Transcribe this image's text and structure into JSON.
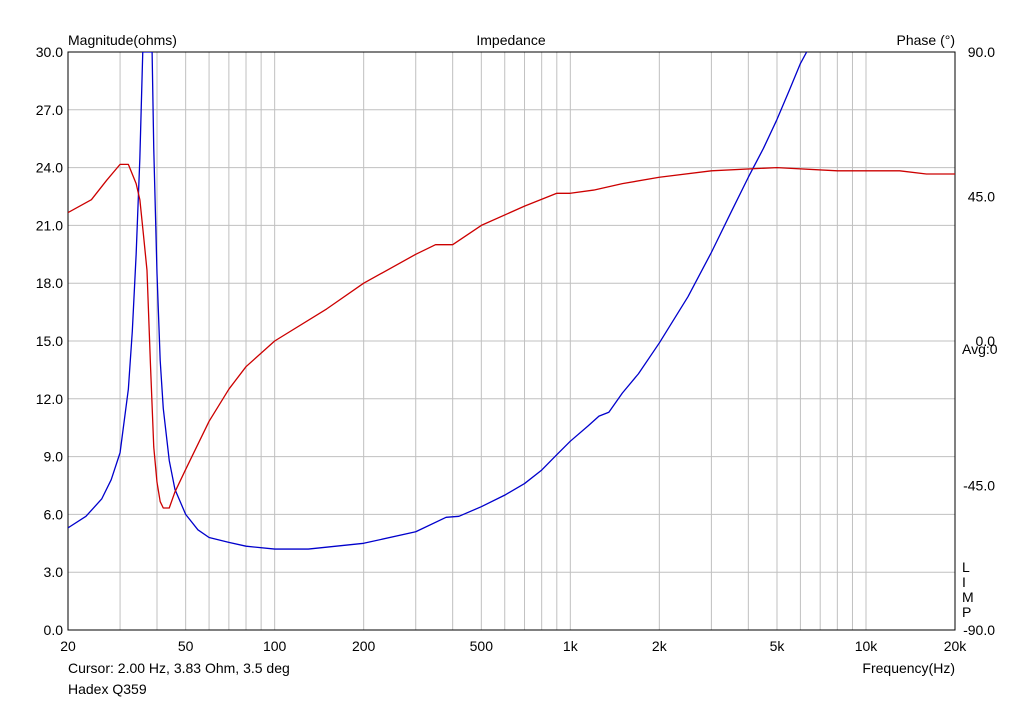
{
  "chart_data": {
    "type": "line",
    "title": "Impedance",
    "ylabel_left": "Magnitude(ohms)",
    "ylabel_right": "Phase (°)",
    "xlabel": "Frequency(Hz)",
    "x_scale": "log",
    "xlim": [
      20,
      20000
    ],
    "ylim_left": [
      0,
      30
    ],
    "ylim_right": [
      -90,
      90
    ],
    "grid": true,
    "x_ticks": [
      20,
      50,
      100,
      200,
      500,
      1000,
      2000,
      5000,
      10000,
      20000
    ],
    "x_tick_labels": [
      "20",
      "50",
      "100",
      "200",
      "500",
      "1k",
      "2k",
      "5k",
      "10k",
      "20k"
    ],
    "y_ticks_left": [
      "0.0",
      "3.0",
      "6.0",
      "9.0",
      "12.0",
      "15.0",
      "18.0",
      "21.0",
      "24.0",
      "27.0",
      "30.0"
    ],
    "y_ticks_right": [
      {
        "label": "90.0",
        "value": 90
      },
      {
        "label": "45.0",
        "value": 45
      },
      {
        "label": "0.0",
        "value": 0
      },
      {
        "label": "-45.0",
        "value": -45
      },
      {
        "label": "-90.0",
        "value": -90
      }
    ],
    "avg_label": "Avg:0",
    "side_label": [
      "L",
      "I",
      "M",
      "P"
    ],
    "cursor_text": "Cursor: 2.00 Hz, 3.83 Ohm, 3.5 deg",
    "footer_text": "Hadex Q359",
    "series": [
      {
        "color": "#0000cc",
        "axis": "left",
        "points": [
          [
            20,
            5.3
          ],
          [
            23,
            5.9
          ],
          [
            26,
            6.8
          ],
          [
            28,
            7.8
          ],
          [
            30,
            9.2
          ],
          [
            32,
            12.5
          ],
          [
            33,
            15.5
          ],
          [
            34,
            19.5
          ],
          [
            35,
            24.5
          ],
          [
            35.8,
            30
          ],
          [
            38.5,
            30
          ],
          [
            39,
            25
          ],
          [
            40,
            18.5
          ],
          [
            41,
            14
          ],
          [
            42,
            11.5
          ],
          [
            44,
            8.8
          ],
          [
            46,
            7.3
          ],
          [
            50,
            6.0
          ],
          [
            55,
            5.2
          ],
          [
            60,
            4.8
          ],
          [
            70,
            4.55
          ],
          [
            80,
            4.35
          ],
          [
            100,
            4.2
          ],
          [
            130,
            4.2
          ],
          [
            200,
            4.5
          ],
          [
            300,
            5.1
          ],
          [
            380,
            5.85
          ],
          [
            420,
            5.9
          ],
          [
            500,
            6.4
          ],
          [
            600,
            7.0
          ],
          [
            700,
            7.6
          ],
          [
            800,
            8.3
          ],
          [
            900,
            9.1
          ],
          [
            1000,
            9.8
          ],
          [
            1150,
            10.6
          ],
          [
            1250,
            11.1
          ],
          [
            1350,
            11.3
          ],
          [
            1500,
            12.3
          ],
          [
            1700,
            13.3
          ],
          [
            2000,
            14.9
          ],
          [
            2500,
            17.3
          ],
          [
            3000,
            19.6
          ],
          [
            3500,
            21.7
          ],
          [
            4000,
            23.5
          ],
          [
            4500,
            25.0
          ],
          [
            5000,
            26.5
          ],
          [
            5500,
            28.0
          ],
          [
            6000,
            29.4
          ],
          [
            6300,
            30
          ]
        ]
      },
      {
        "color": "#cc0000",
        "axis": "right",
        "points": [
          [
            20,
            40
          ],
          [
            24,
            44
          ],
          [
            27,
            50
          ],
          [
            30,
            55
          ],
          [
            32,
            55
          ],
          [
            34,
            49
          ],
          [
            35,
            44
          ],
          [
            36,
            33
          ],
          [
            37,
            22
          ],
          [
            38,
            -7
          ],
          [
            39,
            -33
          ],
          [
            40,
            -44
          ],
          [
            41,
            -50
          ],
          [
            42,
            -52
          ],
          [
            44,
            -52
          ],
          [
            46,
            -47
          ],
          [
            50,
            -40
          ],
          [
            60,
            -25
          ],
          [
            70,
            -15
          ],
          [
            80,
            -8
          ],
          [
            100,
            0
          ],
          [
            150,
            10
          ],
          [
            200,
            18
          ],
          [
            300,
            27
          ],
          [
            350,
            30
          ],
          [
            400,
            30
          ],
          [
            500,
            36
          ],
          [
            700,
            42
          ],
          [
            900,
            46
          ],
          [
            1000,
            46
          ],
          [
            1200,
            47
          ],
          [
            1500,
            49
          ],
          [
            2000,
            51
          ],
          [
            3000,
            53
          ],
          [
            5000,
            54
          ],
          [
            8000,
            53
          ],
          [
            10000,
            53
          ],
          [
            13000,
            53
          ],
          [
            16000,
            52
          ],
          [
            20000,
            52
          ]
        ]
      }
    ]
  }
}
